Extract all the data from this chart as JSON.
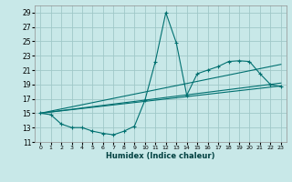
{
  "xlabel": "Humidex (Indice chaleur)",
  "ylabel": "",
  "background_color": "#c8e8e8",
  "grid_color": "#a0c8c8",
  "line_color": "#007070",
  "xlim": [
    -0.5,
    23.5
  ],
  "ylim": [
    11,
    30
  ],
  "xticks": [
    0,
    1,
    2,
    3,
    4,
    5,
    6,
    7,
    8,
    9,
    10,
    11,
    12,
    13,
    14,
    15,
    16,
    17,
    18,
    19,
    20,
    21,
    22,
    23
  ],
  "yticks": [
    11,
    13,
    15,
    17,
    19,
    21,
    23,
    25,
    27,
    29
  ],
  "series1_x": [
    0,
    1,
    2,
    3,
    4,
    5,
    6,
    7,
    8,
    9,
    10,
    11,
    12,
    13,
    14,
    15,
    16,
    17,
    18,
    19,
    20,
    21,
    22,
    23
  ],
  "series1_y": [
    15,
    14.8,
    13.5,
    13,
    13,
    12.5,
    12.2,
    12,
    12.5,
    13.2,
    16.8,
    22.2,
    29,
    24.8,
    17.5,
    20.5,
    21,
    21.5,
    22.2,
    22.3,
    22.2,
    20.5,
    19,
    18.7
  ],
  "series2_x": [
    0,
    23
  ],
  "series2_y": [
    15,
    18.8
  ],
  "series3_x": [
    0,
    23
  ],
  "series3_y": [
    15,
    19.2
  ],
  "series4_x": [
    0,
    23
  ],
  "series4_y": [
    15,
    21.8
  ]
}
